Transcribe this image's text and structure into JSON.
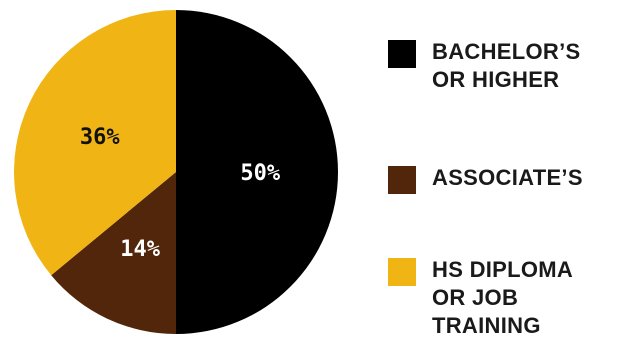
{
  "chart_data": {
    "type": "pie",
    "categories": [
      "BACHELOR’S OR HIGHER",
      "ASSOCIATE’S",
      "HS DIPLOMA OR JOB TRAINING"
    ],
    "values": [
      50,
      14,
      36
    ],
    "data_labels": [
      "50%",
      "14%",
      "36%"
    ],
    "colors": [
      "#000000",
      "#52260a",
      "#f0b515"
    ],
    "label_colors": [
      "#ffffff",
      "#ffffff",
      "#111111"
    ],
    "legend_placement": "right"
  },
  "legend": {
    "items": [
      {
        "lines": [
          "BACHELOR’S",
          "OR HIGHER"
        ],
        "color": "#000000"
      },
      {
        "lines": [
          "ASSOCIATE’S"
        ],
        "color": "#52260a"
      },
      {
        "lines": [
          "HS DIPLOMA",
          "OR JOB",
          "TRAINING"
        ],
        "color": "#f0b515"
      }
    ]
  }
}
